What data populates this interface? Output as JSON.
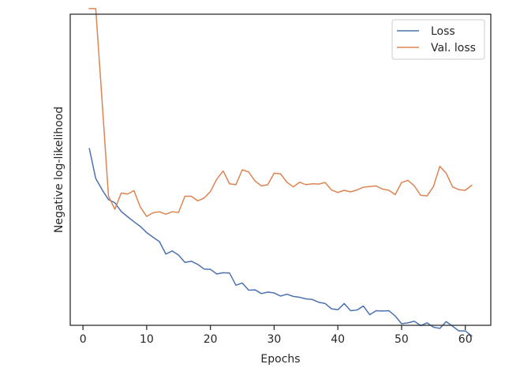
{
  "chart_data": {
    "type": "line",
    "title": "",
    "xlabel": "Epochs",
    "ylabel": "Negative log-likelihood",
    "xlim": [
      -2,
      64
    ],
    "ylim": [
      0,
      100
    ],
    "x_ticks": [
      0,
      10,
      20,
      30,
      40,
      50,
      60
    ],
    "x_tick_labels": [
      "0",
      "10",
      "20",
      "30",
      "40",
      "50",
      "60"
    ],
    "y_tick_labels_shown": false,
    "grid": false,
    "legend": {
      "position": "top-right"
    },
    "series": [
      {
        "name": "Loss",
        "color": "#4c72b0",
        "x": [
          1,
          2,
          3,
          4,
          5,
          6,
          7,
          8,
          9,
          10,
          11,
          12,
          13,
          14,
          15,
          16,
          17,
          18,
          19,
          20,
          21,
          22,
          23,
          24,
          25,
          26,
          27,
          28,
          29,
          30,
          31,
          32,
          33,
          34,
          35,
          36,
          37,
          38,
          39,
          40,
          41,
          42,
          43,
          44,
          45,
          46,
          47,
          48,
          49,
          50,
          51,
          52,
          53,
          54,
          55,
          56,
          57,
          58,
          59,
          60,
          61
        ],
        "values": [
          56.8,
          47.2,
          43.6,
          40.4,
          39.4,
          36.6,
          34.9,
          33.3,
          31.8,
          29.8,
          28.3,
          26.9,
          22.9,
          23.9,
          22.6,
          20.2,
          20.6,
          19.6,
          18.1,
          18.0,
          16.5,
          16.9,
          16.8,
          12.9,
          13.6,
          11.3,
          11.4,
          10.2,
          10.7,
          10.4,
          9.4,
          10.0,
          9.3,
          9.0,
          8.5,
          8.3,
          7.4,
          7.0,
          5.3,
          5.0,
          7.0,
          4.7,
          4.9,
          6.2,
          3.4,
          4.7,
          4.6,
          4.7,
          3.0,
          0.5,
          0.8,
          1.3,
          -0.1,
          0.8,
          -0.6,
          -1.0,
          1.2,
          -0.3,
          -1.8,
          -1.8,
          -3.4
        ]
      },
      {
        "name": "Val. loss",
        "color": "#dd8452",
        "x": [
          1,
          2,
          3,
          4,
          5,
          6,
          7,
          8,
          9,
          10,
          11,
          12,
          13,
          14,
          15,
          16,
          17,
          18,
          19,
          20,
          21,
          22,
          23,
          24,
          25,
          26,
          27,
          28,
          29,
          30,
          31,
          32,
          33,
          34,
          35,
          36,
          37,
          38,
          39,
          40,
          41,
          42,
          43,
          44,
          45,
          46,
          47,
          48,
          49,
          50,
          51,
          52,
          53,
          54,
          55,
          56,
          57,
          58,
          59,
          60,
          61
        ],
        "values": [
          101.8,
          101.8,
          72.1,
          41.6,
          37.3,
          42.5,
          42.2,
          43.3,
          38.0,
          35.0,
          36.2,
          36.5,
          35.7,
          36.5,
          36.3,
          41.5,
          41.5,
          40.0,
          40.9,
          43.0,
          47.0,
          49.6,
          45.5,
          45.2,
          50.0,
          49.3,
          46.4,
          44.8,
          45.2,
          48.9,
          48.7,
          46.0,
          44.5,
          46.0,
          45.2,
          45.5,
          45.4,
          45.9,
          43.5,
          42.7,
          43.4,
          42.9,
          43.5,
          44.4,
          44.6,
          44.8,
          43.8,
          43.4,
          42.0,
          45.9,
          46.6,
          44.8,
          41.8,
          41.6,
          44.6,
          51.1,
          48.9,
          44.5,
          43.6,
          43.4,
          45.0
        ]
      }
    ]
  }
}
